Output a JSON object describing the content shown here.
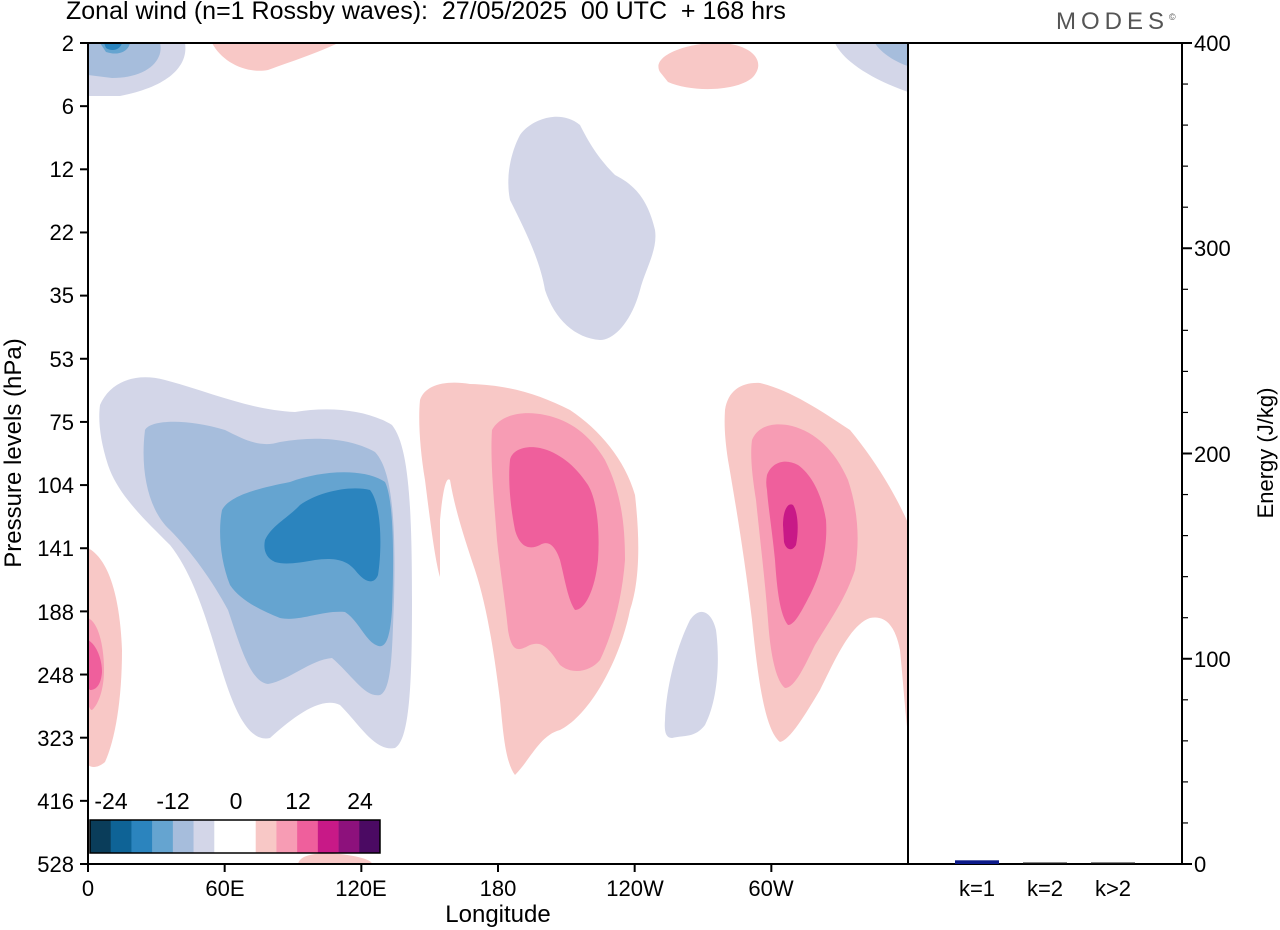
{
  "header": {
    "title": "Zonal wind (n=1 Rossby waves):  27/05/2025  00 UTC  + 168 hrs",
    "brand": "MODES",
    "brand_mark": "©"
  },
  "colors": {
    "blue_4": "#0a3d5a",
    "blue_3": "#0e6396",
    "blue_2": "#2b84be",
    "blue_1": "#65a4d0",
    "blue_0": "#a6bddc",
    "blue_min": "#d3d6e8",
    "white": "#ffffff",
    "red_min": "#f8c8c6",
    "red_1": "#f79cb4",
    "red_2": "#ef5f9c",
    "red_3": "#c81987",
    "red_4": "#8d117c",
    "red_5": "#4b0a63",
    "bar_k1": "#0c1a8a",
    "bar_dark": "#111111"
  },
  "chart_data": [
    {
      "type": "contour",
      "title": "Zonal wind (n=1 Rossby waves):  27/05/2025  00 UTC  + 168 hrs",
      "xlabel": "Longitude",
      "ylabel": "Pressure levels (hPa)",
      "x_ticks": [
        "0",
        "60E",
        "120E",
        "180",
        "120W",
        "60W"
      ],
      "y_ticks": [
        "2",
        "6",
        "12",
        "22",
        "35",
        "53",
        "75",
        "104",
        "141",
        "188",
        "248",
        "323",
        "416",
        "528"
      ],
      "colorbar": {
        "tick_labels": [
          "-24",
          "-12",
          "0",
          "12",
          "24"
        ],
        "levels": 14
      }
    },
    {
      "type": "bar",
      "ylabel": "Energy (J/kg)",
      "categories": [
        "k=1",
        "k=2",
        "k>2"
      ],
      "values": [
        1.8,
        0.5,
        0.4
      ],
      "ylim": [
        0,
        400
      ],
      "y_ticks": [
        "0",
        "100",
        "200",
        "300",
        "400"
      ]
    }
  ]
}
